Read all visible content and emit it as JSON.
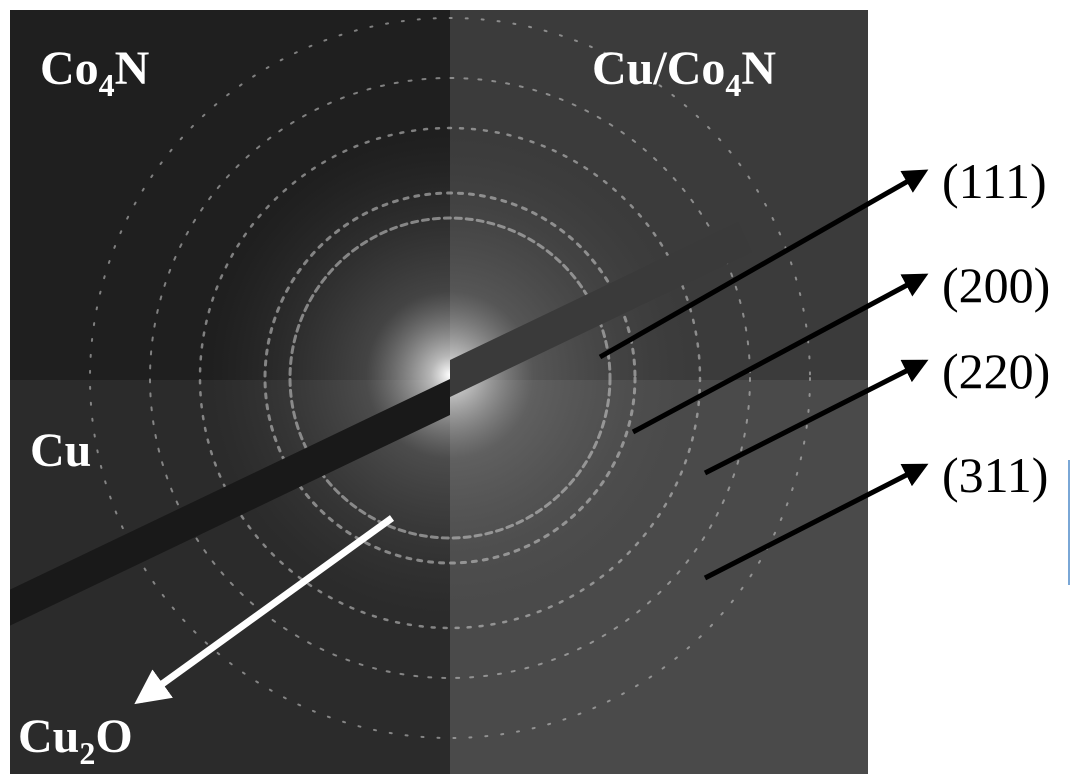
{
  "panel_labels": [
    [
      "Co",
      "4",
      "N"
    ],
    [
      "Cu/Co",
      "4",
      "N"
    ],
    [
      "Cu"
    ],
    [
      "Cu",
      "2",
      "O"
    ]
  ],
  "reflections": [
    "(111)",
    "(200)",
    "(220)",
    "(311)"
  ]
}
